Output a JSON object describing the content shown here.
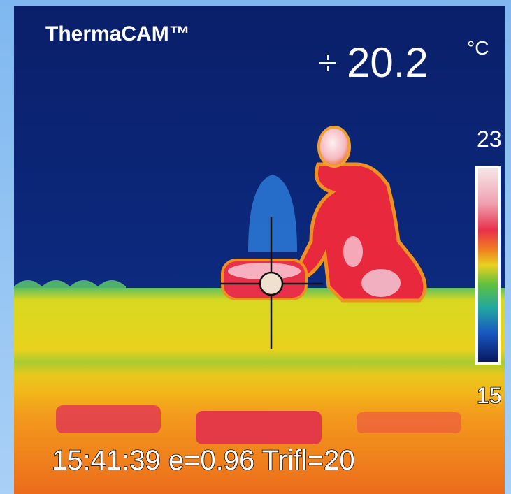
{
  "header": {
    "brand": "ThermaCAM™",
    "reading": 20.2,
    "unit": "°C"
  },
  "scale": {
    "max": 23,
    "min": 15
  },
  "footer": {
    "status": "15:41:39 e=0.96 Trifl=20"
  }
}
